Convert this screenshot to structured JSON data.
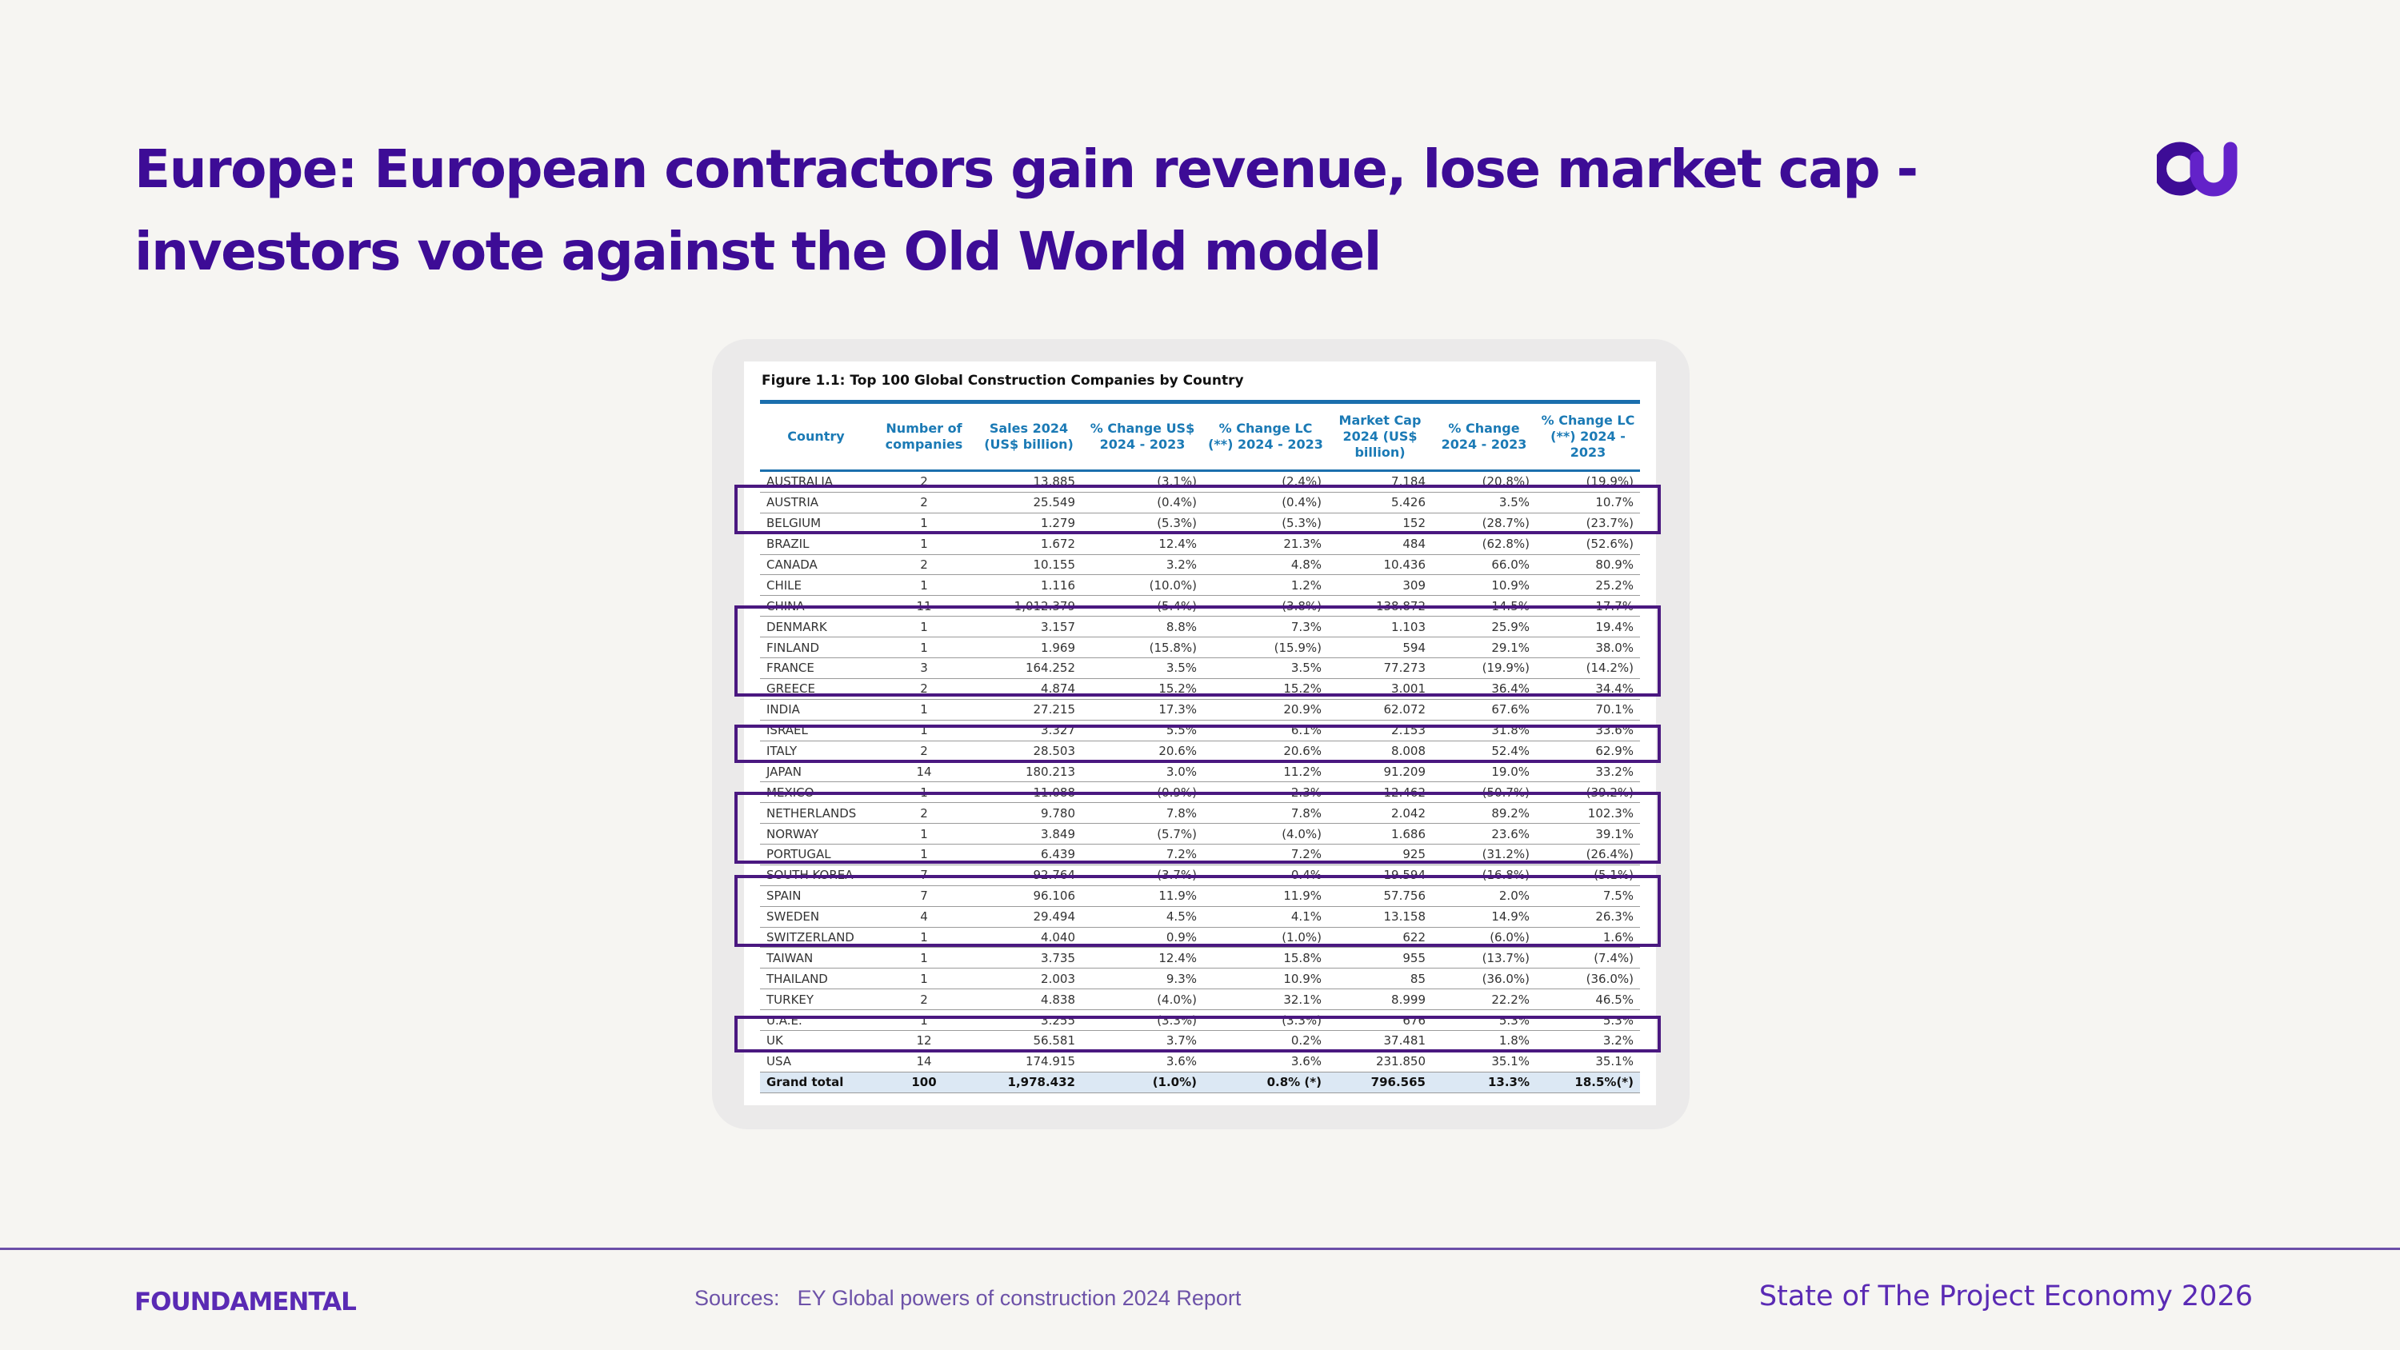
{
  "slide": {
    "title_line1": "Europe: European contractors gain revenue, lose market cap -",
    "title_line2": "investors vote against the Old World model",
    "logo_icon": "fundamental-logo-icon",
    "accent_color": "#3d0c96"
  },
  "figure": {
    "title": "Figure 1.1: Top 100 Global Construction Companies by Country",
    "header_color": "#1b7ab5",
    "highlight_color": "#4a1880",
    "columns": [
      "Country",
      "Number of companies",
      "Sales 2024 (US$ billion)",
      "% Change US$ 2024 - 2023",
      "% Change LC (**) 2024 - 2023",
      "Market Cap 2024 (US$ billion)",
      "% Change 2024 - 2023",
      "% Change LC (**) 2024 - 2023"
    ],
    "rows": [
      [
        "AUSTRALIA",
        "2",
        "13.885",
        "(3.1%)",
        "(2.4%)",
        "7.184",
        "(20.8%)",
        "(19.9%)"
      ],
      [
        "AUSTRIA",
        "2",
        "25.549",
        "(0.4%)",
        "(0.4%)",
        "5.426",
        "3.5%",
        "10.7%"
      ],
      [
        "BELGIUM",
        "1",
        "1.279",
        "(5.3%)",
        "(5.3%)",
        "152",
        "(28.7%)",
        "(23.7%)"
      ],
      [
        "BRAZIL",
        "1",
        "1.672",
        "12.4%",
        "21.3%",
        "484",
        "(62.8%)",
        "(52.6%)"
      ],
      [
        "CANADA",
        "2",
        "10.155",
        "3.2%",
        "4.8%",
        "10.436",
        "66.0%",
        "80.9%"
      ],
      [
        "CHILE",
        "1",
        "1.116",
        "(10.0%)",
        "1.2%",
        "309",
        "10.9%",
        "25.2%"
      ],
      [
        "CHINA",
        "11",
        "1,012.379",
        "(5.4%)",
        "(3.8%)",
        "138.872",
        "14.5%",
        "17.7%"
      ],
      [
        "DENMARK",
        "1",
        "3.157",
        "8.8%",
        "7.3%",
        "1.103",
        "25.9%",
        "19.4%"
      ],
      [
        "FINLAND",
        "1",
        "1.969",
        "(15.8%)",
        "(15.9%)",
        "594",
        "29.1%",
        "38.0%"
      ],
      [
        "FRANCE",
        "3",
        "164.252",
        "3.5%",
        "3.5%",
        "77.273",
        "(19.9%)",
        "(14.2%)"
      ],
      [
        "GREECE",
        "2",
        "4.874",
        "15.2%",
        "15.2%",
        "3.001",
        "36.4%",
        "34.4%"
      ],
      [
        "INDIA",
        "1",
        "27.215",
        "17.3%",
        "20.9%",
        "62.072",
        "67.6%",
        "70.1%"
      ],
      [
        "ISRAEL",
        "1",
        "3.327",
        "5.5%",
        "6.1%",
        "2.153",
        "31.8%",
        "33.6%"
      ],
      [
        "ITALY",
        "2",
        "28.503",
        "20.6%",
        "20.6%",
        "8.008",
        "52.4%",
        "62.9%"
      ],
      [
        "JAPAN",
        "14",
        "180.213",
        "3.0%",
        "11.2%",
        "91.209",
        "19.0%",
        "33.2%"
      ],
      [
        "MEXICO",
        "1",
        "11.088",
        "(0.9%)",
        "2.3%",
        "12.462",
        "(50.7%)",
        "(39.2%)"
      ],
      [
        "NETHERLANDS",
        "2",
        "9.780",
        "7.8%",
        "7.8%",
        "2.042",
        "89.2%",
        "102.3%"
      ],
      [
        "NORWAY",
        "1",
        "3.849",
        "(5.7%)",
        "(4.0%)",
        "1.686",
        "23.6%",
        "39.1%"
      ],
      [
        "PORTUGAL",
        "1",
        "6.439",
        "7.2%",
        "7.2%",
        "925",
        "(31.2%)",
        "(26.4%)"
      ],
      [
        "SOUTH KOREA",
        "7",
        "92.764",
        "(3.7%)",
        "0.4%",
        "19.594",
        "(16.8%)",
        "(5.1%)"
      ],
      [
        "SPAIN",
        "7",
        "96.106",
        "11.9%",
        "11.9%",
        "57.756",
        "2.0%",
        "7.5%"
      ],
      [
        "SWEDEN",
        "4",
        "29.494",
        "4.5%",
        "4.1%",
        "13.158",
        "14.9%",
        "26.3%"
      ],
      [
        "SWITZERLAND",
        "1",
        "4.040",
        "0.9%",
        "(1.0%)",
        "622",
        "(6.0%)",
        "1.6%"
      ],
      [
        "TAIWAN",
        "1",
        "3.735",
        "12.4%",
        "15.8%",
        "955",
        "(13.7%)",
        "(7.4%)"
      ],
      [
        "THAILAND",
        "1",
        "2.003",
        "9.3%",
        "10.9%",
        "85",
        "(36.0%)",
        "(36.0%)"
      ],
      [
        "TURKEY",
        "2",
        "4.838",
        "(4.0%)",
        "32.1%",
        "8.999",
        "22.2%",
        "46.5%"
      ],
      [
        "U.A.E.",
        "1",
        "3.255",
        "(3.3%)",
        "(3.3%)",
        "676",
        "5.3%",
        "5.3%"
      ],
      [
        "UK",
        "12",
        "56.581",
        "3.7%",
        "0.2%",
        "37.481",
        "1.8%",
        "3.2%"
      ],
      [
        "USA",
        "14",
        "174.915",
        "3.6%",
        "3.6%",
        "231.850",
        "35.1%",
        "35.1%"
      ]
    ],
    "total": [
      "Grand total",
      "100",
      "1,978.432",
      "(1.0%)",
      "0.8% (*)",
      "796.565",
      "13.3%",
      "18.5%(*)"
    ]
  },
  "footer": {
    "brand": "FOUNDAMENTAL",
    "sources_label": "Sources:",
    "sources_text": "EY Global powers of construction 2024 Report",
    "report_name": "State of The Project Economy 2026"
  }
}
